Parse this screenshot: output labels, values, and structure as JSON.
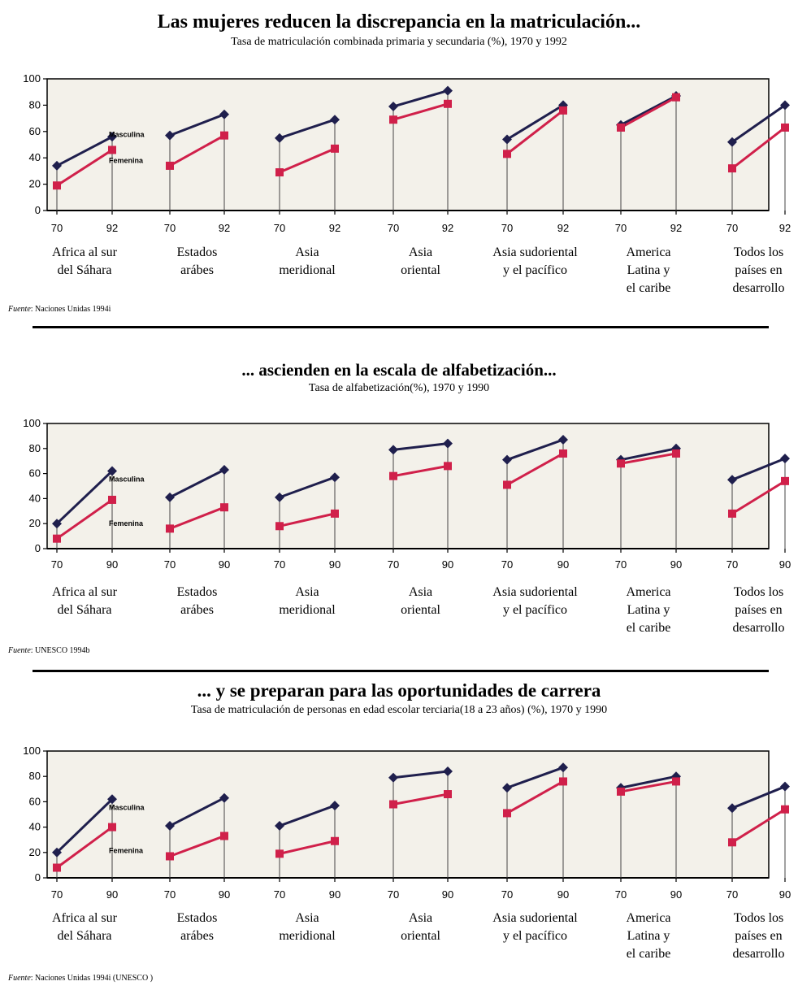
{
  "colors": {
    "male": "#1f1f4d",
    "female": "#d0204a",
    "plot_bg": "#f3f1ea"
  },
  "chart_data": [
    {
      "type": "line",
      "title": "Las mujeres reducen la discrepancia en la matriculación...",
      "subtitle": "Tasa de matriculación combinada primaria y secundaria (%), 1970 y 1992",
      "ylim": [
        0,
        100
      ],
      "yticks": [
        "0",
        "20",
        "40",
        "60",
        "80",
        "100"
      ],
      "x_ticks": [
        "70",
        "92"
      ],
      "series_labels": {
        "male": "Masculina",
        "female": "Femenina"
      },
      "groups": [
        {
          "label": [
            "Africa al sur",
            "del Sáhara"
          ],
          "male": [
            34,
            56
          ],
          "female": [
            19,
            46
          ]
        },
        {
          "label": [
            "Estados",
            "arábes"
          ],
          "male": [
            57,
            73
          ],
          "female": [
            34,
            57
          ]
        },
        {
          "label": [
            "Asia",
            "meridional"
          ],
          "male": [
            55,
            69
          ],
          "female": [
            29,
            47
          ]
        },
        {
          "label": [
            "Asia",
            "oriental"
          ],
          "male": [
            79,
            91
          ],
          "female": [
            69,
            81
          ]
        },
        {
          "label": [
            "Asia sudoriental",
            "y el pacífico"
          ],
          "male": [
            54,
            80
          ],
          "female": [
            43,
            76
          ]
        },
        {
          "label": [
            "America",
            "Latina y",
            "el caribe"
          ],
          "male": [
            65,
            87
          ],
          "female": [
            63,
            86
          ]
        },
        {
          "label": [
            "Todos los",
            "países en",
            "desarrollo"
          ],
          "male": [
            52,
            80
          ],
          "female": [
            32,
            63
          ]
        }
      ],
      "source_label": "Fuente",
      "source": "Naciones Unidas 1994i"
    },
    {
      "type": "line",
      "title": "... ascienden en la escala de alfabetización...",
      "subtitle": "Tasa de alfabetización(%), 1970 y 1990",
      "ylim": [
        0,
        100
      ],
      "yticks": [
        "0",
        "20",
        "40",
        "60",
        "80",
        "100"
      ],
      "x_ticks": [
        "70",
        "90"
      ],
      "series_labels": {
        "male": "Masculina",
        "female": "Femenina"
      },
      "groups": [
        {
          "label": [
            "Africa al sur",
            "del Sáhara"
          ],
          "male": [
            20,
            62
          ],
          "female": [
            8,
            39
          ]
        },
        {
          "label": [
            "Estados",
            "arábes"
          ],
          "male": [
            41,
            63
          ],
          "female": [
            16,
            33
          ]
        },
        {
          "label": [
            "Asia",
            "meridional"
          ],
          "male": [
            41,
            57
          ],
          "female": [
            18,
            28
          ]
        },
        {
          "label": [
            "Asia",
            "oriental"
          ],
          "male": [
            79,
            84
          ],
          "female": [
            58,
            66
          ]
        },
        {
          "label": [
            "Asia sudoriental",
            "y el pacífico"
          ],
          "male": [
            71,
            87
          ],
          "female": [
            51,
            76
          ]
        },
        {
          "label": [
            "America",
            "Latina y",
            "el caribe"
          ],
          "male": [
            71,
            80
          ],
          "female": [
            68,
            76
          ]
        },
        {
          "label": [
            "Todos los",
            "países en",
            "desarrollo"
          ],
          "male": [
            55,
            72
          ],
          "female": [
            28,
            54
          ]
        }
      ],
      "source_label": "Fuente",
      "source": "UNESCO  1994b"
    },
    {
      "type": "line",
      "title": "... y se preparan para las oportunidades de carrera",
      "subtitle": "Tasa de matriculación de personas en edad escolar terciaria(18 a 23 años) (%), 1970 y 1990",
      "ylim": [
        0,
        100
      ],
      "yticks": [
        "0",
        "20",
        "40",
        "60",
        "80",
        "100"
      ],
      "x_ticks": [
        "70",
        "90"
      ],
      "series_labels": {
        "male": "Masculina",
        "female": "Femenina"
      },
      "groups": [
        {
          "label": [
            "Africa al sur",
            "del Sáhara"
          ],
          "male": [
            20,
            62
          ],
          "female": [
            8,
            40
          ]
        },
        {
          "label": [
            "Estados",
            "arábes"
          ],
          "male": [
            41,
            63
          ],
          "female": [
            17,
            33
          ]
        },
        {
          "label": [
            "Asia",
            "meridional"
          ],
          "male": [
            41,
            57
          ],
          "female": [
            19,
            29
          ]
        },
        {
          "label": [
            "Asia",
            "oriental"
          ],
          "male": [
            79,
            84
          ],
          "female": [
            58,
            66
          ]
        },
        {
          "label": [
            "Asia sudoriental",
            "y el pacífico"
          ],
          "male": [
            71,
            87
          ],
          "female": [
            51,
            76
          ]
        },
        {
          "label": [
            "America",
            "Latina y",
            "el caribe"
          ],
          "male": [
            71,
            80
          ],
          "female": [
            68,
            76
          ]
        },
        {
          "label": [
            "Todos los",
            "países en",
            "desarrollo"
          ],
          "male": [
            55,
            72
          ],
          "female": [
            28,
            54
          ]
        }
      ],
      "source_label": "Fuente",
      "source": "Naciones Unidas 1994i (UNESCO )"
    }
  ]
}
